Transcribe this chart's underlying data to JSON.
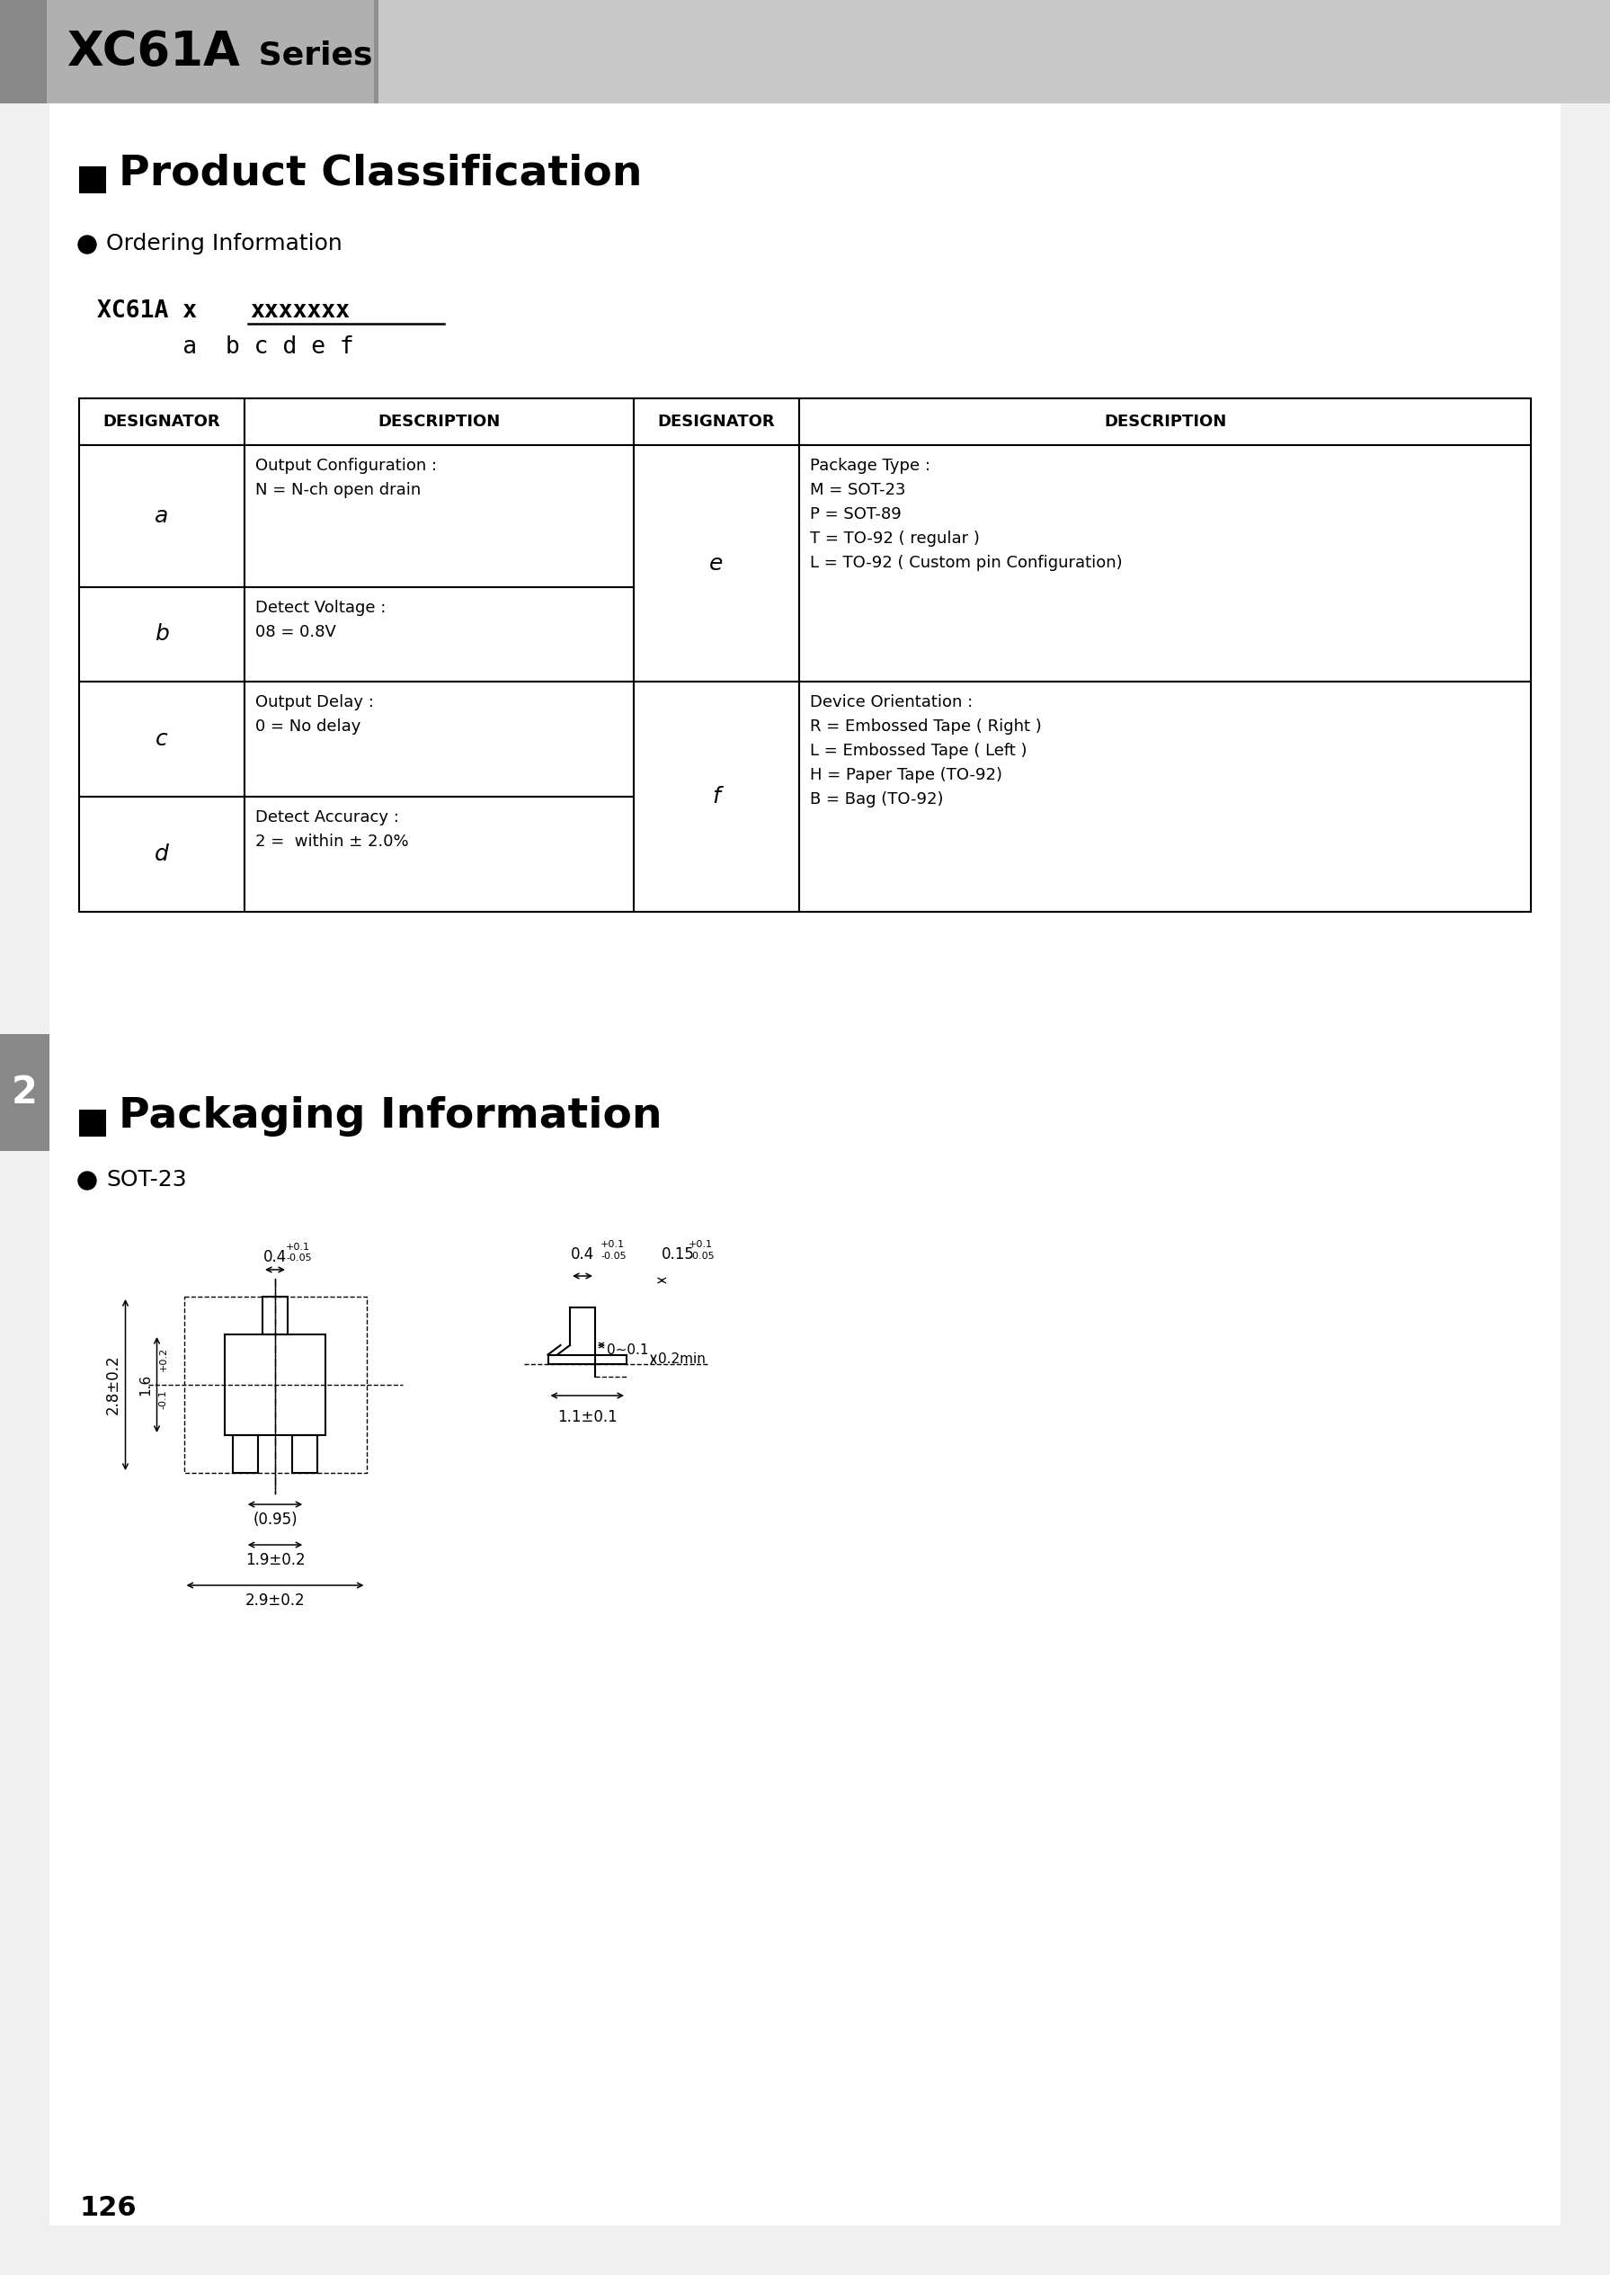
{
  "page_bg": "#d8d8d8",
  "header_left_bg": "#b0b0b0",
  "header_right_bg": "#cccccc",
  "header_bold": "XC61A",
  "header_normal": " Series",
  "section1_title": "Product Classification",
  "section1_bullet": "Ordering Information",
  "table_col_headers": [
    "DESIGNATOR",
    "DESCRIPTION",
    "DESIGNATOR",
    "DESCRIPTION"
  ],
  "row_a_des": "a",
  "row_a_desc": "Output Configuration :\nN = N-ch open drain",
  "row_b_des": "b",
  "row_b_desc": "Detect Voltage :\n08 = 0.8V",
  "row_c_des": "c",
  "row_c_desc": "Output Delay :\n0 = No delay",
  "row_d_des": "d",
  "row_d_desc": "Detect Accuracy :\n2 =  within ± 2.0%",
  "row_e_des": "e",
  "row_e_desc": "Package Type :\nM = SOT-23\nP = SOT-89\nT = TO-92 ( regular )\nL = TO-92 ( Custom pin Configuration)",
  "row_f_des": "f",
  "row_f_desc": "Device Orientation :\nR = Embossed Tape ( Right )\nL = Embossed Tape ( Left )\nH = Paper Tape (TO-92)\nB = Bag (TO-92)",
  "section2_title": "Packaging Information",
  "section2_bullet": "SOT-23",
  "page_number": "126",
  "side_tab": "2"
}
